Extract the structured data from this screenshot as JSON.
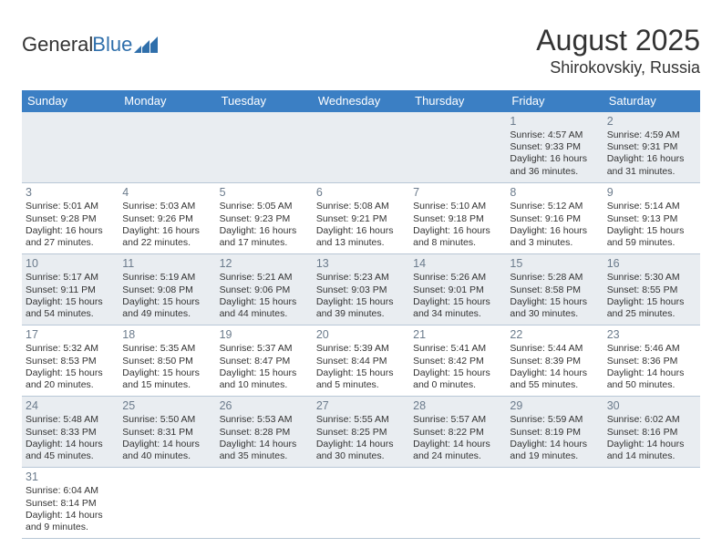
{
  "logo": {
    "text1": "General",
    "text2": "Blue"
  },
  "header": {
    "month": "August 2025",
    "location": "Shirokovskiy, Russia"
  },
  "dayHeaders": [
    "Sunday",
    "Monday",
    "Tuesday",
    "Wednesday",
    "Thursday",
    "Friday",
    "Saturday"
  ],
  "colors": {
    "headerBg": "#3b7fc4",
    "oddRowBg": "#e9edf1",
    "border": "#b8c7d6",
    "dayNum": "#6b7b8c"
  },
  "weeks": [
    [
      null,
      null,
      null,
      null,
      null,
      {
        "n": "1",
        "sr": "Sunrise: 4:57 AM",
        "ss": "Sunset: 9:33 PM",
        "d1": "Daylight: 16 hours",
        "d2": "and 36 minutes."
      },
      {
        "n": "2",
        "sr": "Sunrise: 4:59 AM",
        "ss": "Sunset: 9:31 PM",
        "d1": "Daylight: 16 hours",
        "d2": "and 31 minutes."
      }
    ],
    [
      {
        "n": "3",
        "sr": "Sunrise: 5:01 AM",
        "ss": "Sunset: 9:28 PM",
        "d1": "Daylight: 16 hours",
        "d2": "and 27 minutes."
      },
      {
        "n": "4",
        "sr": "Sunrise: 5:03 AM",
        "ss": "Sunset: 9:26 PM",
        "d1": "Daylight: 16 hours",
        "d2": "and 22 minutes."
      },
      {
        "n": "5",
        "sr": "Sunrise: 5:05 AM",
        "ss": "Sunset: 9:23 PM",
        "d1": "Daylight: 16 hours",
        "d2": "and 17 minutes."
      },
      {
        "n": "6",
        "sr": "Sunrise: 5:08 AM",
        "ss": "Sunset: 9:21 PM",
        "d1": "Daylight: 16 hours",
        "d2": "and 13 minutes."
      },
      {
        "n": "7",
        "sr": "Sunrise: 5:10 AM",
        "ss": "Sunset: 9:18 PM",
        "d1": "Daylight: 16 hours",
        "d2": "and 8 minutes."
      },
      {
        "n": "8",
        "sr": "Sunrise: 5:12 AM",
        "ss": "Sunset: 9:16 PM",
        "d1": "Daylight: 16 hours",
        "d2": "and 3 minutes."
      },
      {
        "n": "9",
        "sr": "Sunrise: 5:14 AM",
        "ss": "Sunset: 9:13 PM",
        "d1": "Daylight: 15 hours",
        "d2": "and 59 minutes."
      }
    ],
    [
      {
        "n": "10",
        "sr": "Sunrise: 5:17 AM",
        "ss": "Sunset: 9:11 PM",
        "d1": "Daylight: 15 hours",
        "d2": "and 54 minutes."
      },
      {
        "n": "11",
        "sr": "Sunrise: 5:19 AM",
        "ss": "Sunset: 9:08 PM",
        "d1": "Daylight: 15 hours",
        "d2": "and 49 minutes."
      },
      {
        "n": "12",
        "sr": "Sunrise: 5:21 AM",
        "ss": "Sunset: 9:06 PM",
        "d1": "Daylight: 15 hours",
        "d2": "and 44 minutes."
      },
      {
        "n": "13",
        "sr": "Sunrise: 5:23 AM",
        "ss": "Sunset: 9:03 PM",
        "d1": "Daylight: 15 hours",
        "d2": "and 39 minutes."
      },
      {
        "n": "14",
        "sr": "Sunrise: 5:26 AM",
        "ss": "Sunset: 9:01 PM",
        "d1": "Daylight: 15 hours",
        "d2": "and 34 minutes."
      },
      {
        "n": "15",
        "sr": "Sunrise: 5:28 AM",
        "ss": "Sunset: 8:58 PM",
        "d1": "Daylight: 15 hours",
        "d2": "and 30 minutes."
      },
      {
        "n": "16",
        "sr": "Sunrise: 5:30 AM",
        "ss": "Sunset: 8:55 PM",
        "d1": "Daylight: 15 hours",
        "d2": "and 25 minutes."
      }
    ],
    [
      {
        "n": "17",
        "sr": "Sunrise: 5:32 AM",
        "ss": "Sunset: 8:53 PM",
        "d1": "Daylight: 15 hours",
        "d2": "and 20 minutes."
      },
      {
        "n": "18",
        "sr": "Sunrise: 5:35 AM",
        "ss": "Sunset: 8:50 PM",
        "d1": "Daylight: 15 hours",
        "d2": "and 15 minutes."
      },
      {
        "n": "19",
        "sr": "Sunrise: 5:37 AM",
        "ss": "Sunset: 8:47 PM",
        "d1": "Daylight: 15 hours",
        "d2": "and 10 minutes."
      },
      {
        "n": "20",
        "sr": "Sunrise: 5:39 AM",
        "ss": "Sunset: 8:44 PM",
        "d1": "Daylight: 15 hours",
        "d2": "and 5 minutes."
      },
      {
        "n": "21",
        "sr": "Sunrise: 5:41 AM",
        "ss": "Sunset: 8:42 PM",
        "d1": "Daylight: 15 hours",
        "d2": "and 0 minutes."
      },
      {
        "n": "22",
        "sr": "Sunrise: 5:44 AM",
        "ss": "Sunset: 8:39 PM",
        "d1": "Daylight: 14 hours",
        "d2": "and 55 minutes."
      },
      {
        "n": "23",
        "sr": "Sunrise: 5:46 AM",
        "ss": "Sunset: 8:36 PM",
        "d1": "Daylight: 14 hours",
        "d2": "and 50 minutes."
      }
    ],
    [
      {
        "n": "24",
        "sr": "Sunrise: 5:48 AM",
        "ss": "Sunset: 8:33 PM",
        "d1": "Daylight: 14 hours",
        "d2": "and 45 minutes."
      },
      {
        "n": "25",
        "sr": "Sunrise: 5:50 AM",
        "ss": "Sunset: 8:31 PM",
        "d1": "Daylight: 14 hours",
        "d2": "and 40 minutes."
      },
      {
        "n": "26",
        "sr": "Sunrise: 5:53 AM",
        "ss": "Sunset: 8:28 PM",
        "d1": "Daylight: 14 hours",
        "d2": "and 35 minutes."
      },
      {
        "n": "27",
        "sr": "Sunrise: 5:55 AM",
        "ss": "Sunset: 8:25 PM",
        "d1": "Daylight: 14 hours",
        "d2": "and 30 minutes."
      },
      {
        "n": "28",
        "sr": "Sunrise: 5:57 AM",
        "ss": "Sunset: 8:22 PM",
        "d1": "Daylight: 14 hours",
        "d2": "and 24 minutes."
      },
      {
        "n": "29",
        "sr": "Sunrise: 5:59 AM",
        "ss": "Sunset: 8:19 PM",
        "d1": "Daylight: 14 hours",
        "d2": "and 19 minutes."
      },
      {
        "n": "30",
        "sr": "Sunrise: 6:02 AM",
        "ss": "Sunset: 8:16 PM",
        "d1": "Daylight: 14 hours",
        "d2": "and 14 minutes."
      }
    ],
    [
      {
        "n": "31",
        "sr": "Sunrise: 6:04 AM",
        "ss": "Sunset: 8:14 PM",
        "d1": "Daylight: 14 hours",
        "d2": "and 9 minutes."
      },
      null,
      null,
      null,
      null,
      null,
      null
    ]
  ]
}
